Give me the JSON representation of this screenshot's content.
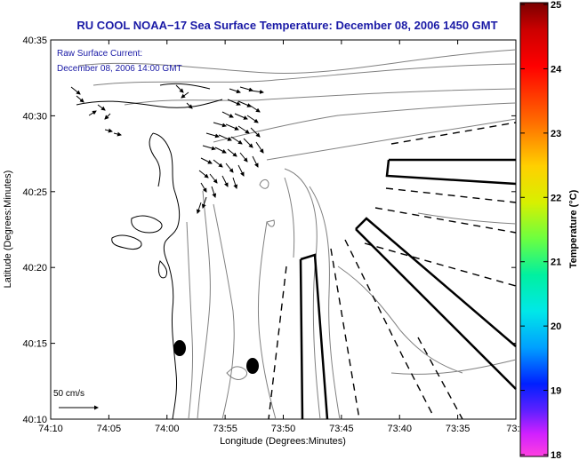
{
  "chart_data": {
    "type": "map",
    "title": "RU COOL  NOAA−17  Sea Surface Temperature:  December 08, 2006 1450 GMT",
    "annotation_lines": [
      "Raw Surface Current:",
      "December 08, 2006 14:00 GMT"
    ],
    "xlabel": "Longitude (Degrees:Minutes)",
    "ylabel": "Latitude (Degrees:Minutes)",
    "x_ticks": [
      "74:10",
      "74:05",
      "74:00",
      "73:55",
      "73:50",
      "73:45",
      "73:40",
      "73:35",
      "73:3"
    ],
    "y_ticks": [
      "40:35",
      "40:30",
      "40:25",
      "40:20",
      "40:15",
      "40:10"
    ],
    "scale_label": "50 cm/s",
    "colorbar": {
      "label": "Temperature (°C)",
      "min": 18,
      "max": 25,
      "ticks": [
        "25",
        "24",
        "23",
        "22",
        "21",
        "20",
        "19",
        "18"
      ]
    },
    "grid": false
  }
}
